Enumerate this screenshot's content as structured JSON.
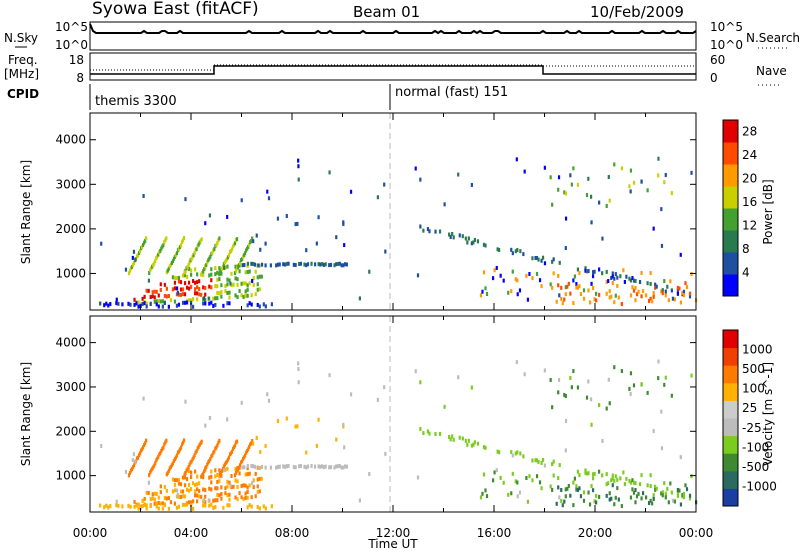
{
  "header": {
    "title": "Syowa East (fitACF)",
    "beam": "Beam 01",
    "date": "10/Feb/2009"
  },
  "panels": {
    "nsky_label": "N.Sky",
    "nsearch_label": "N.Search",
    "nsky_ticks": [
      "10^5",
      "10^0"
    ],
    "freq_label_top": "Freq.",
    "freq_label_unit": "[MHz]",
    "freq_ticks": [
      "18",
      "8"
    ],
    "nave_label": "Nave",
    "nave_ticks": [
      "60",
      "0"
    ],
    "cpid_label": "CPID",
    "cpid_segments": [
      "themis 3300",
      "normal (fast) 151"
    ]
  },
  "colors": {
    "power_scale": [
      "#0000ff",
      "#1f4fa0",
      "#2a7a50",
      "#44a030",
      "#c8d000",
      "#ff9a00",
      "#ff4a00",
      "#e00000"
    ],
    "velocity_scale": [
      "#1a3fa0",
      "#2a6a60",
      "#3f8a30",
      "#7ccc20",
      "#bcbcbc",
      "#cccccc",
      "#ffb000",
      "#ff7a00",
      "#f04000",
      "#e00000"
    ],
    "ground_scatter": "#aaaaaa"
  },
  "chart_data": [
    {
      "type": "heatmap",
      "name": "power",
      "ylabel": "Slant Range [km]",
      "yticks": [
        "1000",
        "2000",
        "3000",
        "4000"
      ],
      "ylim": [
        180,
        4600
      ],
      "xlim_hours": [
        0,
        24
      ],
      "colorbar_label": "Power [dB]",
      "colorbar_ticks": [
        "4",
        "8",
        "12",
        "16",
        "20",
        "24",
        "28"
      ],
      "colorbar_range": [
        0,
        30
      ]
    },
    {
      "type": "heatmap",
      "name": "velocity",
      "ylabel": "Slant Range [km]",
      "yticks": [
        "1000",
        "2000",
        "3000",
        "4000"
      ],
      "ylim": [
        180,
        4600
      ],
      "xlim_hours": [
        0,
        24
      ],
      "colorbar_label": "Velocity [m s^-1]",
      "colorbar_ticks": [
        "1000",
        "500",
        "100",
        "25",
        "-25",
        "-100",
        "-500",
        "-1000"
      ]
    }
  ],
  "xaxis": {
    "label": "Time UT",
    "ticks": [
      "00:00",
      "04:00",
      "08:00",
      "12:00",
      "16:00",
      "20:00",
      "00:00"
    ]
  }
}
